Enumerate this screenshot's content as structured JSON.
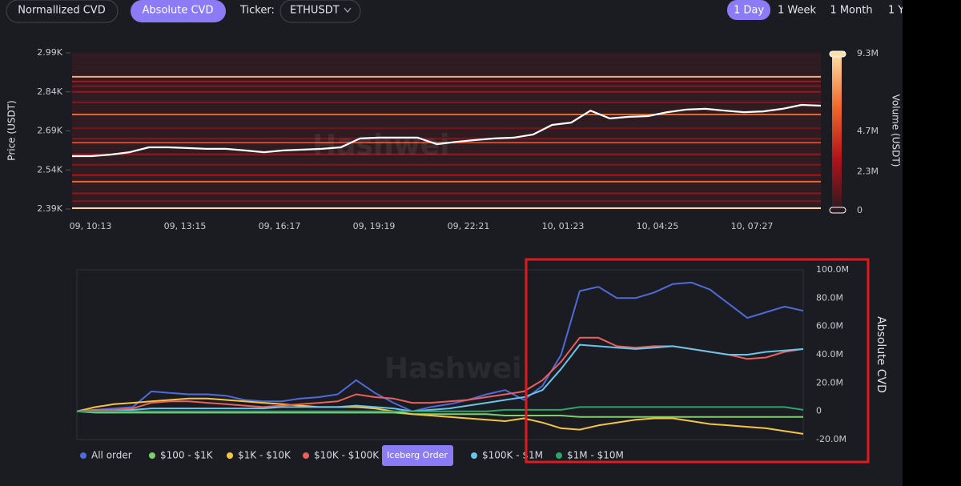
{
  "toolbar": {
    "tabs": [
      "Normallized CVD",
      "Absolute CVD"
    ],
    "active_tab": 1,
    "ticker_label": "Ticker:",
    "ticker": "ETHUSDT",
    "ranges": [
      "1 Day",
      "1 Week",
      "1 Month",
      "1 Y"
    ],
    "active_range": 0
  },
  "watermark": "Hashwei",
  "price_chart": {
    "type": "heatmap",
    "ylabel": "Price (USDT)",
    "y2label": "Volume (USDT)",
    "ylim": [
      2390,
      2990
    ],
    "yticks": [
      {
        "value": 2990,
        "label": "2.99K"
      },
      {
        "value": 2840,
        "label": "2.84K"
      },
      {
        "value": 2690,
        "label": "2.69K"
      },
      {
        "value": 2540,
        "label": "2.54K"
      },
      {
        "value": 2390,
        "label": "2.39K"
      }
    ],
    "xtick_labels": [
      "09, 10:13",
      "09, 13:15",
      "09, 16:17",
      "09, 19:19",
      "09, 22:21",
      "10, 01:23",
      "10, 04:25",
      "10, 07:27"
    ],
    "clim": [
      0,
      9300000
    ],
    "cticks": [
      {
        "value": 9300000,
        "label": "9.3M"
      },
      {
        "value": 4700000,
        "label": "4.7M"
      },
      {
        "value": 2300000,
        "label": "2.3M"
      },
      0
    ],
    "colorscale": [
      "#2b1b20",
      "#b3121a",
      "#f06a2a",
      "#ffe0a8"
    ],
    "line": {
      "color": "#ffffff",
      "values": [
        2593,
        2593,
        2599,
        2608,
        2627,
        2627,
        2624,
        2621,
        2621,
        2615,
        2608,
        2615,
        2618,
        2621,
        2627,
        2661,
        2664,
        2664,
        2664,
        2639,
        2648,
        2655,
        2661,
        2664,
        2676,
        2713,
        2722,
        2768,
        2738,
        2744,
        2747,
        2762,
        2772,
        2775,
        2768,
        2762,
        2765,
        2775,
        2790,
        2787
      ]
    },
    "levels": [
      {
        "price": 2898,
        "volume": 8000000
      },
      {
        "price": 2880,
        "volume": 3000000
      },
      {
        "price": 2862,
        "volume": 2000000
      },
      {
        "price": 2840,
        "volume": 2500000
      },
      {
        "price": 2800,
        "volume": 2000000
      },
      {
        "price": 2753,
        "volume": 6000000
      },
      {
        "price": 2700,
        "volume": 1500000
      },
      {
        "price": 2660,
        "volume": 2000000
      },
      {
        "price": 2645,
        "volume": 5000000
      },
      {
        "price": 2600,
        "volume": 2500000
      },
      {
        "price": 2560,
        "volume": 2000000
      },
      {
        "price": 2520,
        "volume": 3000000
      },
      {
        "price": 2495,
        "volume": 6000000
      },
      {
        "price": 2450,
        "volume": 2500000
      },
      {
        "price": 2420,
        "volume": 2000000
      },
      {
        "price": 2393,
        "volume": 9000000
      }
    ]
  },
  "cvd_chart": {
    "type": "line",
    "ylabel": "Absolute CVD",
    "ylim": [
      -20000000,
      100000000
    ],
    "yticks": [
      {
        "value": 100000000,
        "label": "100.0M"
      },
      {
        "value": 80000000,
        "label": "80.0M"
      },
      {
        "value": 60000000,
        "label": "60.0M"
      },
      {
        "value": 40000000,
        "label": "40.0M"
      },
      {
        "value": 20000000,
        "label": "20.0M"
      },
      0,
      {
        "value": -20000000,
        "label": "-20.0M"
      }
    ],
    "legend_button": "Iceberg Order",
    "series": [
      {
        "name": "All order",
        "color": "#4f6bd8",
        "values": [
          0,
          1000000.0,
          2000000.0,
          3000000.0,
          14000000.0,
          13000000.0,
          12000000.0,
          12000000.0,
          11000000.0,
          8000000.0,
          7000000.0,
          7000000.0,
          9000000.0,
          10000000.0,
          12000000.0,
          22000000.0,
          13000000.0,
          6000000.0,
          0,
          3000000.0,
          5000000.0,
          8000000.0,
          12000000.0,
          15000000.0,
          8000000.0,
          18000000.0,
          40000000.0,
          85000000.0,
          88000000.0,
          80000000.0,
          80000000.0,
          84000000.0,
          90000000.0,
          91000000.0,
          86000000.0,
          76000000.0,
          66000000.0,
          70000000.0,
          74000000.0,
          71000000.0
        ]
      },
      {
        "name": "$100 - $1K",
        "color": "#7ccf6b",
        "values": [
          0,
          -1000000.0,
          -1000000.0,
          -1000000.0,
          -1000000.0,
          -1000000.0,
          -1000000.0,
          -1000000.0,
          -1000000.0,
          -1000000.0,
          -1000000.0,
          -1000000.0,
          -1000000.0,
          -1000000.0,
          -1000000.0,
          -1000000.0,
          -1000000.0,
          -1000000.0,
          -2000000.0,
          -2000000.0,
          -2000000.0,
          -2000000.0,
          -2000000.0,
          -3000000.0,
          -3000000.0,
          -3000000.0,
          -3000000.0,
          -4000000.0,
          -4000000.0,
          -4000000.0,
          -4000000.0,
          -4000000.0,
          -4000000.0,
          -4000000.0,
          -4000000.0,
          -4000000.0,
          -4000000.0,
          -4000000.0,
          -4000000.0,
          -4000000.0
        ]
      },
      {
        "name": "$1K - $10K",
        "color": "#f5c542",
        "values": [
          0,
          3000000.0,
          5000000.0,
          6000000.0,
          7000000.0,
          8000000.0,
          9000000.0,
          9000000.0,
          8000000.0,
          7000000.0,
          6000000.0,
          5000000.0,
          4000000.0,
          3000000.0,
          3000000.0,
          3000000.0,
          2000000.0,
          0,
          -2000000.0,
          -3000000.0,
          -4000000.0,
          -5000000.0,
          -6000000.0,
          -7000000.0,
          -5000000.0,
          -8000000.0,
          -12000000.0,
          -13000000.0,
          -10000000.0,
          -8000000.0,
          -6000000.0,
          -5000000.0,
          -5000000.0,
          -7000000.0,
          -9000000.0,
          -10000000.0,
          -11000000.0,
          -12000000.0,
          -14000000.0,
          -16000000.0
        ]
      },
      {
        "name": "$10K - $100K",
        "color": "#e9605c",
        "values": [
          0,
          1000000.0,
          1000000.0,
          2000000.0,
          6000000.0,
          7000000.0,
          7000000.0,
          6000000.0,
          5000000.0,
          4000000.0,
          3000000.0,
          4000000.0,
          5000000.0,
          6000000.0,
          7000000.0,
          12000000.0,
          10000000.0,
          9000000.0,
          6000000.0,
          6000000.0,
          7000000.0,
          8000000.0,
          10000000.0,
          12000000.0,
          14000000.0,
          22000000.0,
          35000000.0,
          52000000.0,
          52000000.0,
          46000000.0,
          45000000.0,
          46000000.0,
          46000000.0,
          44000000.0,
          42000000.0,
          40000000.0,
          37000000.0,
          38000000.0,
          42000000.0,
          44000000.0
        ]
      },
      {
        "name": "$100K - $1M",
        "color": "#6ac3e8",
        "values": [
          0,
          0,
          0,
          1000000.0,
          2000000.0,
          2000000.0,
          2000000.0,
          2000000.0,
          2000000.0,
          2000000.0,
          2000000.0,
          3000000.0,
          3000000.0,
          3000000.0,
          3000000.0,
          4000000.0,
          3000000.0,
          2000000.0,
          0,
          1000000.0,
          2000000.0,
          4000000.0,
          6000000.0,
          8000000.0,
          10000000.0,
          15000000.0,
          30000000.0,
          47000000.0,
          46000000.0,
          45000000.0,
          44000000.0,
          45000000.0,
          46000000.0,
          44000000.0,
          42000000.0,
          40000000.0,
          40000000.0,
          42000000.0,
          43000000.0,
          44000000.0
        ]
      },
      {
        "name": "$1M - $10M",
        "color": "#2ea46a",
        "values": [
          0,
          0,
          0,
          0,
          0,
          0,
          0,
          0,
          0,
          0,
          0,
          0,
          0,
          0,
          0,
          0,
          0,
          0,
          0,
          0,
          0,
          0,
          0,
          1000000.0,
          1000000.0,
          1000000.0,
          1000000.0,
          3000000.0,
          3000000.0,
          3000000.0,
          3000000.0,
          3000000.0,
          3000000.0,
          3000000.0,
          3000000.0,
          3000000.0,
          3000000.0,
          3000000.0,
          3000000.0,
          1000000.0
        ]
      }
    ]
  }
}
